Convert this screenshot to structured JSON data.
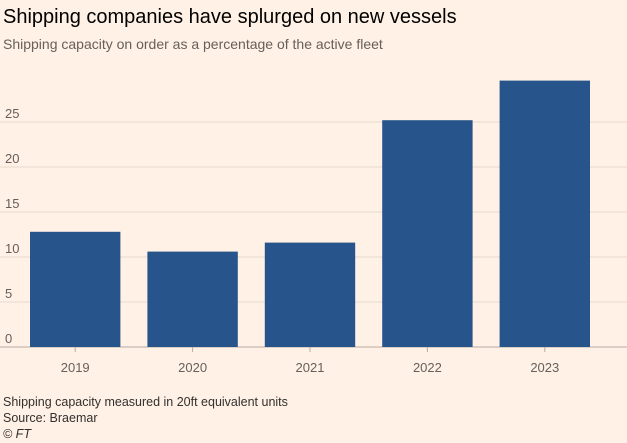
{
  "header": {
    "title": "Shipping companies have splurged on new vessels",
    "subtitle": "Shipping capacity on order as a percentage of the active fleet"
  },
  "footer": {
    "note": "Shipping capacity measured in 20ft equivalent units",
    "source": "Source: Braemar",
    "copyright": "© FT"
  },
  "colors": {
    "background": "#fff1e5",
    "bar": "#27548a",
    "grid": "#e6d9ce",
    "text": "#66605c"
  },
  "chart_data": {
    "type": "bar",
    "title": "Shipping companies have splurged on new vessels",
    "subtitle": "Shipping capacity on order as a percentage of the active fleet",
    "xlabel": "",
    "ylabel": "",
    "categories": [
      "2019",
      "2020",
      "2021",
      "2022",
      "2023"
    ],
    "values": [
      12.8,
      10.6,
      11.6,
      25.2,
      29.6
    ],
    "ylim": [
      0,
      30
    ],
    "yticks": [
      0,
      5,
      10,
      15,
      20,
      25
    ],
    "grid": true,
    "legend": "none"
  }
}
